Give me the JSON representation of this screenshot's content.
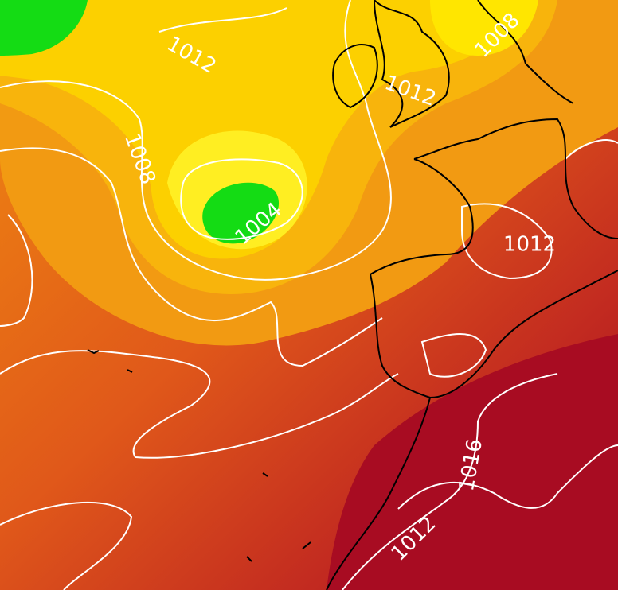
{
  "map": {
    "isobar_labels": [
      {
        "text": "1012"
      },
      {
        "text": "1008"
      },
      {
        "text": "1004"
      },
      {
        "text": "1012"
      },
      {
        "text": "1008"
      },
      {
        "text": "1012"
      },
      {
        "text": "1016"
      },
      {
        "text": "1012"
      }
    ]
  }
}
